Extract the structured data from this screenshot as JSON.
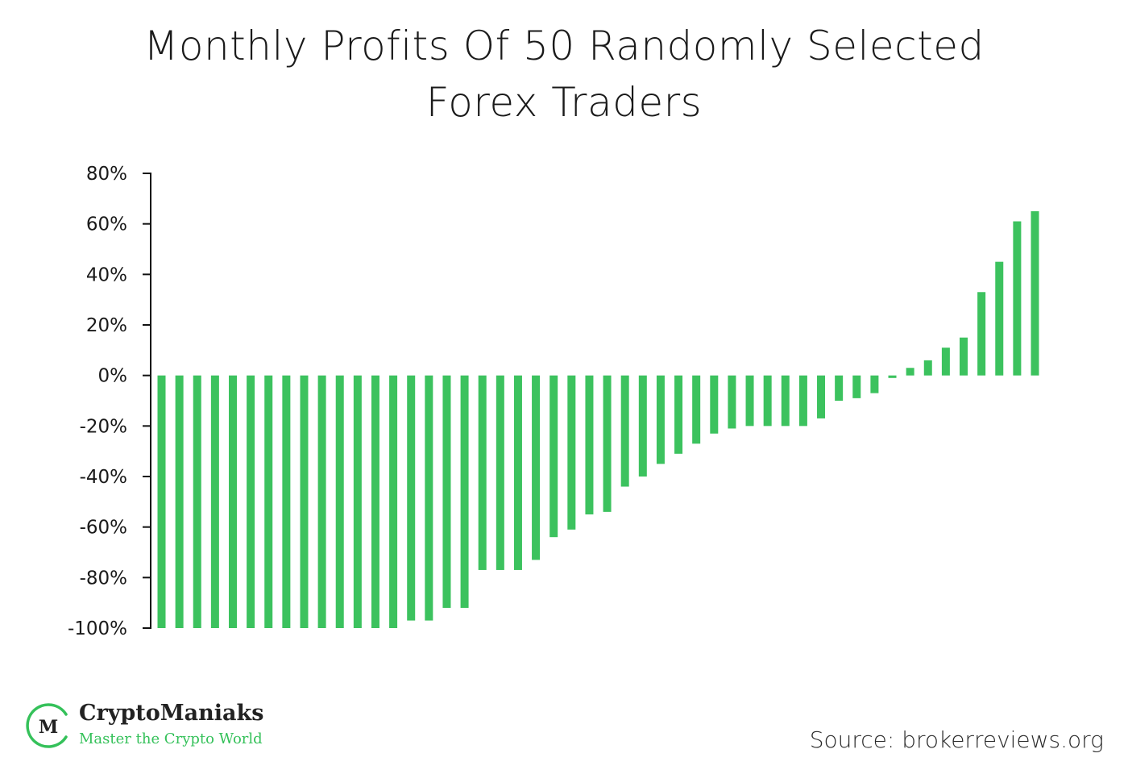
{
  "title_line1": "Monthly Profits Of 50 Randomly Selected",
  "title_line2": "Forex Traders",
  "bar_color": "#3cc25e",
  "brand": {
    "name": "CryptoManiaks",
    "tagline": "Master the Crypto World",
    "monogram": "M",
    "accent_color": "#35c15a"
  },
  "source": "Source: brokerreviews.org",
  "chart_data": {
    "type": "bar",
    "title": "Monthly Profits Of 50 Randomly Selected Forex Traders",
    "xlabel": "",
    "ylabel": "",
    "ylim": [
      -100,
      80
    ],
    "y_ticks": [
      80,
      60,
      40,
      20,
      0,
      -20,
      -40,
      -60,
      -80,
      -100
    ],
    "y_tick_labels": [
      "80%",
      "60%",
      "40%",
      "20%",
      "0%",
      "-20%",
      "-40%",
      "-60%",
      "-80%",
      "-100%"
    ],
    "grid": false,
    "legend": "none",
    "values": [
      -100,
      -100,
      -100,
      -100,
      -100,
      -100,
      -100,
      -100,
      -100,
      -100,
      -100,
      -100,
      -100,
      -100,
      -97,
      -97,
      -92,
      -92,
      -77,
      -77,
      -77,
      -73,
      -64,
      -61,
      -55,
      -54,
      -44,
      -40,
      -35,
      -31,
      -27,
      -23,
      -21,
      -20,
      -20,
      -20,
      -20,
      -17,
      -10,
      -9,
      -7,
      -1,
      3,
      6,
      11,
      15,
      33,
      45,
      61,
      65
    ]
  }
}
